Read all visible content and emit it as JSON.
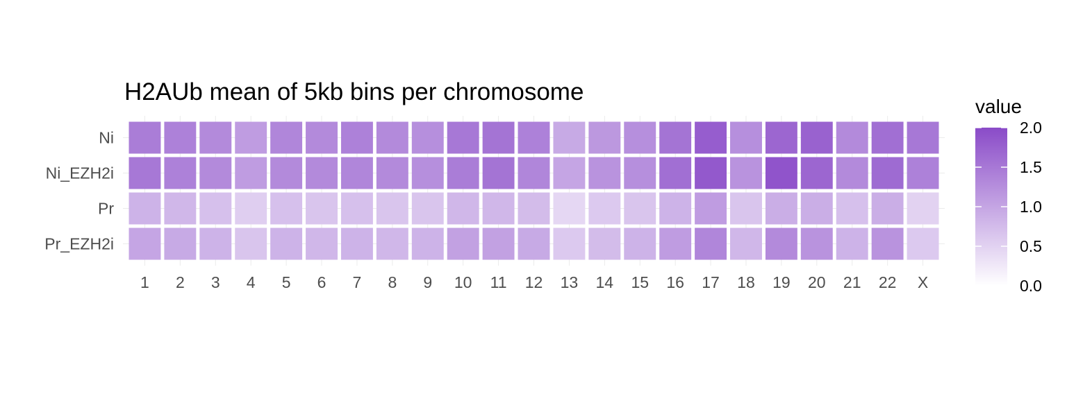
{
  "chart_data": {
    "type": "heatmap",
    "title": "H2AUb mean of 5kb bins per chromosome",
    "xlabel": "",
    "ylabel": "",
    "x_categories": [
      "1",
      "2",
      "3",
      "4",
      "5",
      "6",
      "7",
      "8",
      "9",
      "10",
      "11",
      "12",
      "13",
      "14",
      "15",
      "16",
      "17",
      "18",
      "19",
      "20",
      "21",
      "22",
      "X"
    ],
    "y_categories": [
      "Ni",
      "Ni_EZH2i",
      "Pr",
      "Pr_EZH2i"
    ],
    "values": [
      [
        1.45,
        1.4,
        1.3,
        1.1,
        1.35,
        1.3,
        1.4,
        1.3,
        1.25,
        1.5,
        1.55,
        1.4,
        0.95,
        1.15,
        1.25,
        1.55,
        1.8,
        1.25,
        1.7,
        1.75,
        1.3,
        1.6,
        1.5
      ],
      [
        1.5,
        1.4,
        1.3,
        1.1,
        1.3,
        1.3,
        1.35,
        1.3,
        1.25,
        1.45,
        1.55,
        1.35,
        1.0,
        1.2,
        1.25,
        1.6,
        1.85,
        1.2,
        1.9,
        1.7,
        1.3,
        1.65,
        1.4
      ],
      [
        0.85,
        0.8,
        0.7,
        0.55,
        0.7,
        0.65,
        0.7,
        0.65,
        0.65,
        0.8,
        0.8,
        0.75,
        0.45,
        0.6,
        0.65,
        0.85,
        1.1,
        0.65,
        0.9,
        0.9,
        0.7,
        0.9,
        0.5
      ],
      [
        1.0,
        0.95,
        0.85,
        0.65,
        0.85,
        0.8,
        0.85,
        0.8,
        0.85,
        1.05,
        1.05,
        0.95,
        0.6,
        0.75,
        0.85,
        1.1,
        1.35,
        0.8,
        1.3,
        1.2,
        0.85,
        1.2,
        0.6
      ]
    ],
    "color_scale": {
      "low": "#ffffff",
      "high": "#8a4bc8",
      "limits": [
        0,
        2.0
      ]
    },
    "legend": {
      "title": "value",
      "position": "right",
      "tick_values": [
        2.0,
        1.5,
        1.0,
        0.5,
        0.0
      ],
      "tick_labels": [
        "2.0",
        "1.5",
        "1.0",
        "0.5",
        "0.0"
      ]
    },
    "grid": true
  }
}
